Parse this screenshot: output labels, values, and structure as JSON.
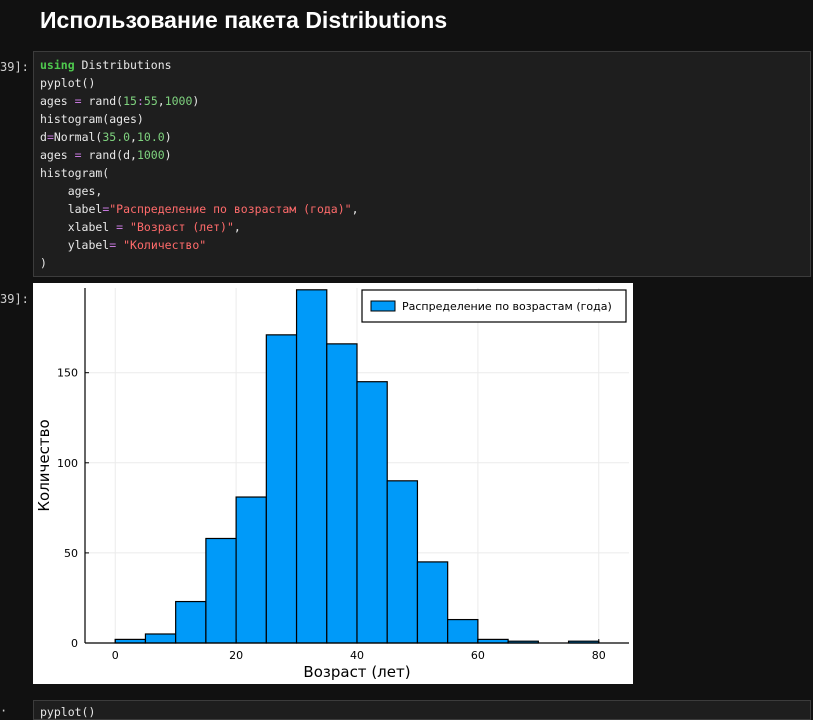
{
  "notebook": {
    "heading": "Использование пакета Distributions",
    "input_prompt": "39]:",
    "output_prompt": "39]:",
    "next_cell_prompt": "·",
    "next_cell_code": "pyplot()"
  },
  "code_cell": {
    "lines": [
      [
        {
          "t": "using",
          "c": "kw"
        },
        {
          "t": " Distributions",
          "c": ""
        }
      ],
      [
        {
          "t": "pyplot()",
          "c": ""
        }
      ],
      [
        {
          "t": "ages ",
          "c": ""
        },
        {
          "t": "=",
          "c": "op"
        },
        {
          "t": " rand(",
          "c": ""
        },
        {
          "t": "15",
          "c": "num"
        },
        {
          "t": ":",
          "c": "op"
        },
        {
          "t": "55",
          "c": "num"
        },
        {
          "t": ",",
          "c": ""
        },
        {
          "t": "1000",
          "c": "num"
        },
        {
          "t": ")",
          "c": ""
        }
      ],
      [
        {
          "t": "histogram(ages)",
          "c": ""
        }
      ],
      [
        {
          "t": "d",
          "c": ""
        },
        {
          "t": "=",
          "c": "op"
        },
        {
          "t": "Normal(",
          "c": ""
        },
        {
          "t": "35.0",
          "c": "num"
        },
        {
          "t": ",",
          "c": ""
        },
        {
          "t": "10.0",
          "c": "num"
        },
        {
          "t": ")",
          "c": ""
        }
      ],
      [
        {
          "t": "ages ",
          "c": ""
        },
        {
          "t": "=",
          "c": "op"
        },
        {
          "t": " rand(d,",
          "c": ""
        },
        {
          "t": "1000",
          "c": "num"
        },
        {
          "t": ")",
          "c": ""
        }
      ],
      [
        {
          "t": "histogram(",
          "c": ""
        }
      ],
      [
        {
          "t": "    ages,",
          "c": ""
        }
      ],
      [
        {
          "t": "    label",
          "c": ""
        },
        {
          "t": "=",
          "c": "op"
        },
        {
          "t": "\"Распределение по возрастам (года)\"",
          "c": "str"
        },
        {
          "t": ",",
          "c": ""
        }
      ],
      [
        {
          "t": "    xlabel ",
          "c": ""
        },
        {
          "t": "=",
          "c": "op"
        },
        {
          "t": " ",
          "c": ""
        },
        {
          "t": "\"Возраст (лет)\"",
          "c": "str"
        },
        {
          "t": ",",
          "c": ""
        }
      ],
      [
        {
          "t": "    ylabel",
          "c": ""
        },
        {
          "t": "=",
          "c": "op"
        },
        {
          "t": " ",
          "c": ""
        },
        {
          "t": "\"Количество\"",
          "c": "str"
        }
      ],
      [
        {
          "t": ")",
          "c": ""
        }
      ]
    ]
  },
  "chart_data": {
    "type": "bar",
    "bin_edges": [
      0,
      5,
      10,
      15,
      20,
      25,
      30,
      35,
      40,
      45,
      50,
      55,
      60,
      65,
      70,
      75,
      80
    ],
    "values": [
      2,
      5,
      23,
      58,
      81,
      171,
      196,
      166,
      145,
      90,
      45,
      13,
      2,
      1,
      0,
      1
    ],
    "xlabel": "Возраст (лет)",
    "ylabel": "Количество",
    "xlim": [
      -5,
      85
    ],
    "ylim": [
      0,
      197
    ],
    "xticks": [
      0,
      20,
      40,
      60,
      80
    ],
    "yticks": [
      0,
      50,
      100,
      150
    ],
    "series": [
      {
        "name": "Распределение по возрастам (года)",
        "values": [
          2,
          5,
          23,
          58,
          81,
          171,
          196,
          166,
          145,
          90,
          45,
          13,
          2,
          1,
          0,
          1
        ]
      }
    ],
    "legend": "top-right",
    "grid": true,
    "colors": {
      "bar": "#009af9",
      "edge": "#000000",
      "grid": "#ebebeb"
    }
  }
}
